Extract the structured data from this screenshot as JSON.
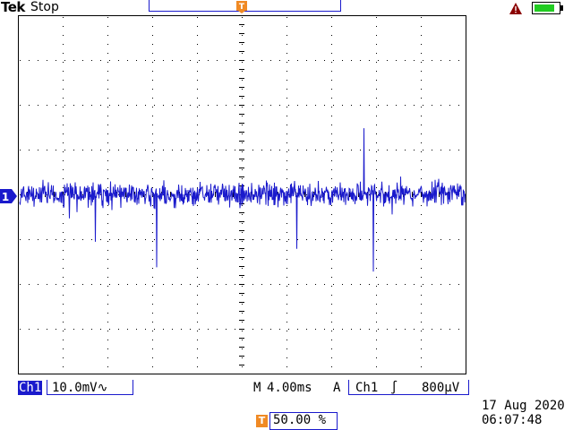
{
  "header": {
    "brand": "Tek",
    "run_state": "Stop",
    "trigger_marker": "T"
  },
  "channel": {
    "marker": "1",
    "label": "Ch1",
    "scale": "10.0mV",
    "coupling_symbol": "∿",
    "color": "#1a1acc"
  },
  "horizontal": {
    "prefix": "M",
    "timebase": "4.00ms"
  },
  "trigger": {
    "mode": "A",
    "source": "Ch1",
    "slope_symbol": "∫",
    "level": "800µV",
    "position_icon": "T",
    "position": "50.00 %",
    "marker_color": "#f08a24"
  },
  "status": {
    "date": "17 Aug 2020",
    "time": "06:07:48",
    "warning_color": "#8b0000",
    "battery_color": "#22cc22"
  },
  "icons": {
    "warning": "warning-triangle-icon",
    "battery": "battery-icon"
  }
}
